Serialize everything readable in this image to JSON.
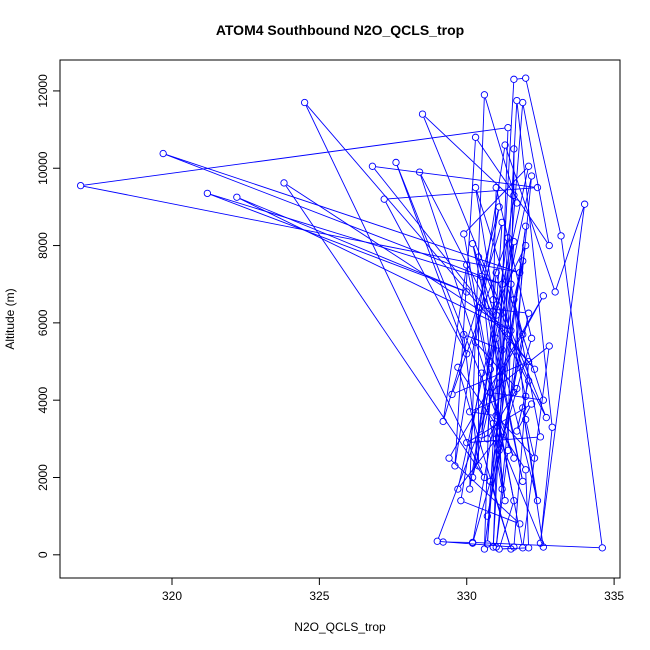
{
  "chart_data": {
    "type": "scatter",
    "title": "ATOM4 Southbound N2O_QCLS_trop",
    "xlabel": "N2O_QCLS_trop",
    "ylabel": "Altitude (m)",
    "xlim": [
      316.2,
      335.2
    ],
    "ylim": [
      -600,
      12800
    ],
    "xticks": [
      320,
      325,
      330,
      335
    ],
    "yticks": [
      0,
      2000,
      4000,
      6000,
      8000,
      10000,
      12000
    ],
    "grid": false,
    "legend": "none",
    "color": "#0000ff",
    "series": [
      {
        "values_xy": [
          [
            329.2,
            330
          ],
          [
            330.2,
            320
          ],
          [
            334.6,
            180
          ],
          [
            333.2,
            8250
          ],
          [
            332.0,
            12330
          ],
          [
            331.6,
            12300
          ],
          [
            330.7,
            280
          ],
          [
            331.9,
            11700
          ],
          [
            332.8,
            8000
          ],
          [
            330.3,
            10800
          ],
          [
            329.6,
            2300
          ],
          [
            331.3,
            10600
          ],
          [
            333.0,
            6800
          ],
          [
            334.0,
            9070
          ],
          [
            332.5,
            300
          ],
          [
            332.9,
            3300
          ],
          [
            331.7,
            11750
          ],
          [
            330.9,
            200
          ],
          [
            331.4,
            11050
          ],
          [
            316.9,
            9550
          ],
          [
            331.8,
            7300
          ],
          [
            319.7,
            10380
          ],
          [
            331.2,
            7000
          ],
          [
            321.2,
            9350
          ],
          [
            330.0,
            6800
          ],
          [
            322.2,
            9250
          ],
          [
            331.5,
            5800
          ],
          [
            323.8,
            9620
          ],
          [
            330.6,
            2000
          ],
          [
            324.5,
            11700
          ],
          [
            332.3,
            4800
          ],
          [
            326.8,
            10050
          ],
          [
            332.4,
            9500
          ],
          [
            327.2,
            9200
          ],
          [
            330.0,
            5200
          ],
          [
            327.6,
            10150
          ],
          [
            331.6,
            2500
          ],
          [
            328.4,
            9900
          ],
          [
            332.7,
            3550
          ],
          [
            328.5,
            11400
          ],
          [
            331.7,
            9100
          ],
          [
            330.6,
            11900
          ],
          [
            330.1,
            1700
          ],
          [
            331.0,
            6200
          ],
          [
            330.3,
            9500
          ],
          [
            332.6,
            4000
          ],
          [
            330.8,
            4200
          ],
          [
            332.8,
            5400
          ],
          [
            331.9,
            180
          ],
          [
            329.9,
            8300
          ],
          [
            332.1,
            10050
          ],
          [
            329.7,
            1700
          ],
          [
            331.0,
            3000
          ],
          [
            331.4,
            8200
          ],
          [
            329.5,
            4150
          ],
          [
            332.1,
            5000
          ],
          [
            331.6,
            200
          ],
          [
            329.0,
            350
          ],
          [
            331.1,
            4600
          ],
          [
            332.6,
            6700
          ],
          [
            329.4,
            2500
          ],
          [
            331.8,
            800
          ],
          [
            329.8,
            1400
          ],
          [
            330.5,
            4700
          ],
          [
            331.2,
            1700
          ],
          [
            330.9,
            6600
          ],
          [
            331.0,
            9500
          ],
          [
            332.2,
            5600
          ],
          [
            330.2,
            300
          ],
          [
            332.0,
            8000
          ],
          [
            330.9,
            6300
          ],
          [
            330.2,
            8050
          ],
          [
            331.9,
            1900
          ],
          [
            330.4,
            7700
          ],
          [
            332.1,
            4500
          ],
          [
            331.7,
            3200
          ],
          [
            332.2,
            3900
          ],
          [
            330.0,
            2900
          ],
          [
            332.5,
            3050
          ],
          [
            331.5,
            7000
          ],
          [
            331.2,
            5300
          ],
          [
            329.9,
            5700
          ],
          [
            330.4,
            2300
          ],
          [
            330.4,
            6400
          ],
          [
            332.1,
            6250
          ],
          [
            330.7,
            1000
          ],
          [
            331.9,
            5700
          ],
          [
            331.6,
            6600
          ],
          [
            332.0,
            3500
          ],
          [
            332.3,
            2500
          ],
          [
            331.0,
            3600
          ],
          [
            330.1,
            3700
          ],
          [
            331.6,
            4200
          ],
          [
            331.9,
            7600
          ],
          [
            330.2,
            2000
          ],
          [
            331.6,
            9300
          ],
          [
            331.6,
            10500
          ],
          [
            331.4,
            2700
          ],
          [
            331.0,
            200
          ],
          [
            332.2,
            9800
          ],
          [
            330.8,
            4800
          ],
          [
            330.6,
            150
          ],
          [
            332.0,
            8500
          ],
          [
            330.8,
            1900
          ],
          [
            331.5,
            150
          ],
          [
            329.7,
            4850
          ],
          [
            332.0,
            2200
          ],
          [
            332.1,
            180
          ],
          [
            331.1,
            150
          ],
          [
            331.6,
            1400
          ],
          [
            330.0,
            7500
          ],
          [
            329.2,
            3450
          ],
          [
            331.2,
            8600
          ],
          [
            330.7,
            3000
          ],
          [
            331.7,
            4300
          ],
          [
            330.3,
            5500
          ],
          [
            331.1,
            9000
          ],
          [
            330.5,
            7200
          ],
          [
            330.8,
            5000
          ],
          [
            331.6,
            8100
          ],
          [
            331.1,
            2700
          ],
          [
            331.3,
            1400
          ],
          [
            330.9,
            3400
          ],
          [
            332.6,
            200
          ],
          [
            331.9,
            3800
          ],
          [
            332.4,
            1400
          ],
          [
            331.0,
            5600
          ],
          [
            330.5,
            3100
          ],
          [
            331.0,
            7300
          ],
          [
            332.0,
            4100
          ]
        ]
      }
    ]
  }
}
